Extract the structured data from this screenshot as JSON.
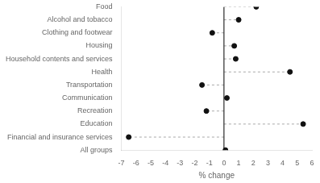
{
  "chart_data": {
    "type": "lollipop",
    "orientation": "horizontal",
    "categories": [
      "Food",
      "Alcohol and tobacco",
      "Clothing and footwear",
      "Housing",
      "Household contents and services",
      "Health",
      "Transportation",
      "Communication",
      "Recreation",
      "Education",
      "Financial and insurance services",
      "All groups"
    ],
    "values": [
      2.2,
      1.0,
      -0.8,
      0.7,
      0.8,
      4.5,
      -1.5,
      0.2,
      -1.2,
      5.4,
      -6.5,
      0.1
    ],
    "color": "#111111",
    "marker": "circle",
    "line_style": "dashed",
    "xlabel": "% change",
    "xlim": [
      -7,
      6
    ],
    "xticks": [
      -7,
      -6,
      -5,
      -4,
      -3,
      -2,
      -1,
      0,
      1,
      2,
      3,
      4,
      5,
      6
    ],
    "grid": false
  }
}
